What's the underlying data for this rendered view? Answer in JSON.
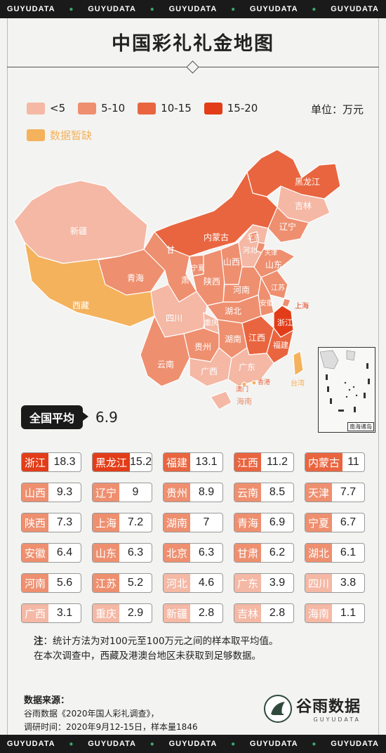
{
  "banner": {
    "text": "GUYUDATA"
  },
  "title": "中国彩礼礼金地图",
  "legend": {
    "items": [
      {
        "label": "<5",
        "color": "#f4b8a5"
      },
      {
        "label": "5-10",
        "color": "#ee8f6f"
      },
      {
        "label": "10-15",
        "color": "#e9653f"
      },
      {
        "label": "15-20",
        "color": "#e23d18"
      }
    ],
    "missing": {
      "label": "数据暂缺",
      "color": "#f4b25c"
    },
    "unit": "单位：万元"
  },
  "map_labels": {
    "xinjiang": "新疆",
    "xizang": "西藏",
    "qinghai": "青海",
    "gansu": "甘",
    "su": "肃",
    "neimenggu": "内蒙古",
    "heilongjiang": "黑龙江",
    "jilin": "吉林",
    "liaoning": "辽宁",
    "beijing": "北京",
    "tianjin": "天津",
    "hebei": "河北",
    "shanxi": "山西",
    "shandong": "山东",
    "ningxia": "宁夏",
    "shaanxi": "陕西",
    "henan": "河南",
    "jiangsu": "江苏",
    "anhui": "安徽",
    "shanghai": "上海",
    "hubei": "湖北",
    "zhejiang": "浙江",
    "sichuan": "四川",
    "chongqing": "重庆",
    "hunan": "湖南",
    "jiangxi": "江西",
    "fujian": "福建",
    "guizhou": "贵州",
    "yunnan": "云南",
    "guangxi": "广西",
    "guangdong": "广东",
    "hainan": "海南",
    "macau": "澳门",
    "hongkong": "香港",
    "taiwan": "台湾",
    "nanhai": "南海诸岛"
  },
  "national_average": {
    "label": "全国平均",
    "value": "6.9"
  },
  "chart_data": {
    "type": "table",
    "title": "中国彩礼礼金地图",
    "unit": "万元",
    "rows": [
      {
        "province": "浙江",
        "value": 18.3
      },
      {
        "province": "黑龙江",
        "value": 15.2
      },
      {
        "province": "福建",
        "value": 13.1
      },
      {
        "province": "江西",
        "value": 11.2
      },
      {
        "province": "内蒙古",
        "value": 11
      },
      {
        "province": "山西",
        "value": 9.3
      },
      {
        "province": "辽宁",
        "value": 9
      },
      {
        "province": "贵州",
        "value": 8.9
      },
      {
        "province": "云南",
        "value": 8.5
      },
      {
        "province": "天津",
        "value": 7.7
      },
      {
        "province": "陕西",
        "value": 7.3
      },
      {
        "province": "上海",
        "value": 7.2
      },
      {
        "province": "湖南",
        "value": 7
      },
      {
        "province": "青海",
        "value": 6.9
      },
      {
        "province": "宁夏",
        "value": 6.7
      },
      {
        "province": "安徽",
        "value": 6.4
      },
      {
        "province": "山东",
        "value": 6.3
      },
      {
        "province": "北京",
        "value": 6.3
      },
      {
        "province": "甘肃",
        "value": 6.2
      },
      {
        "province": "湖北",
        "value": 6.1
      },
      {
        "province": "河南",
        "value": 5.6
      },
      {
        "province": "江苏",
        "value": 5.2
      },
      {
        "province": "河北",
        "value": 4.6
      },
      {
        "province": "广东",
        "value": 3.9
      },
      {
        "province": "四川",
        "value": 3.8
      },
      {
        "province": "广西",
        "value": 3.1
      },
      {
        "province": "重庆",
        "value": 2.9
      },
      {
        "province": "新疆",
        "value": 2.8
      },
      {
        "province": "吉林",
        "value": 2.8
      },
      {
        "province": "海南",
        "value": 1.1
      }
    ]
  },
  "note": {
    "prefix": "注",
    "line1": "：统计方法为对100元至100万元之间的样本取平均值。",
    "line2": "在本次调查中，西藏及港澳台地区未获取到足够数据。"
  },
  "source": {
    "heading": "数据来源：",
    "line1": "谷雨数据《2020年国人彩礼调查》，",
    "line2": "调研时间：2020年9月12-15日，样本量1846"
  },
  "brand": {
    "name": "谷雨数据",
    "en": "GUYUDATA"
  }
}
